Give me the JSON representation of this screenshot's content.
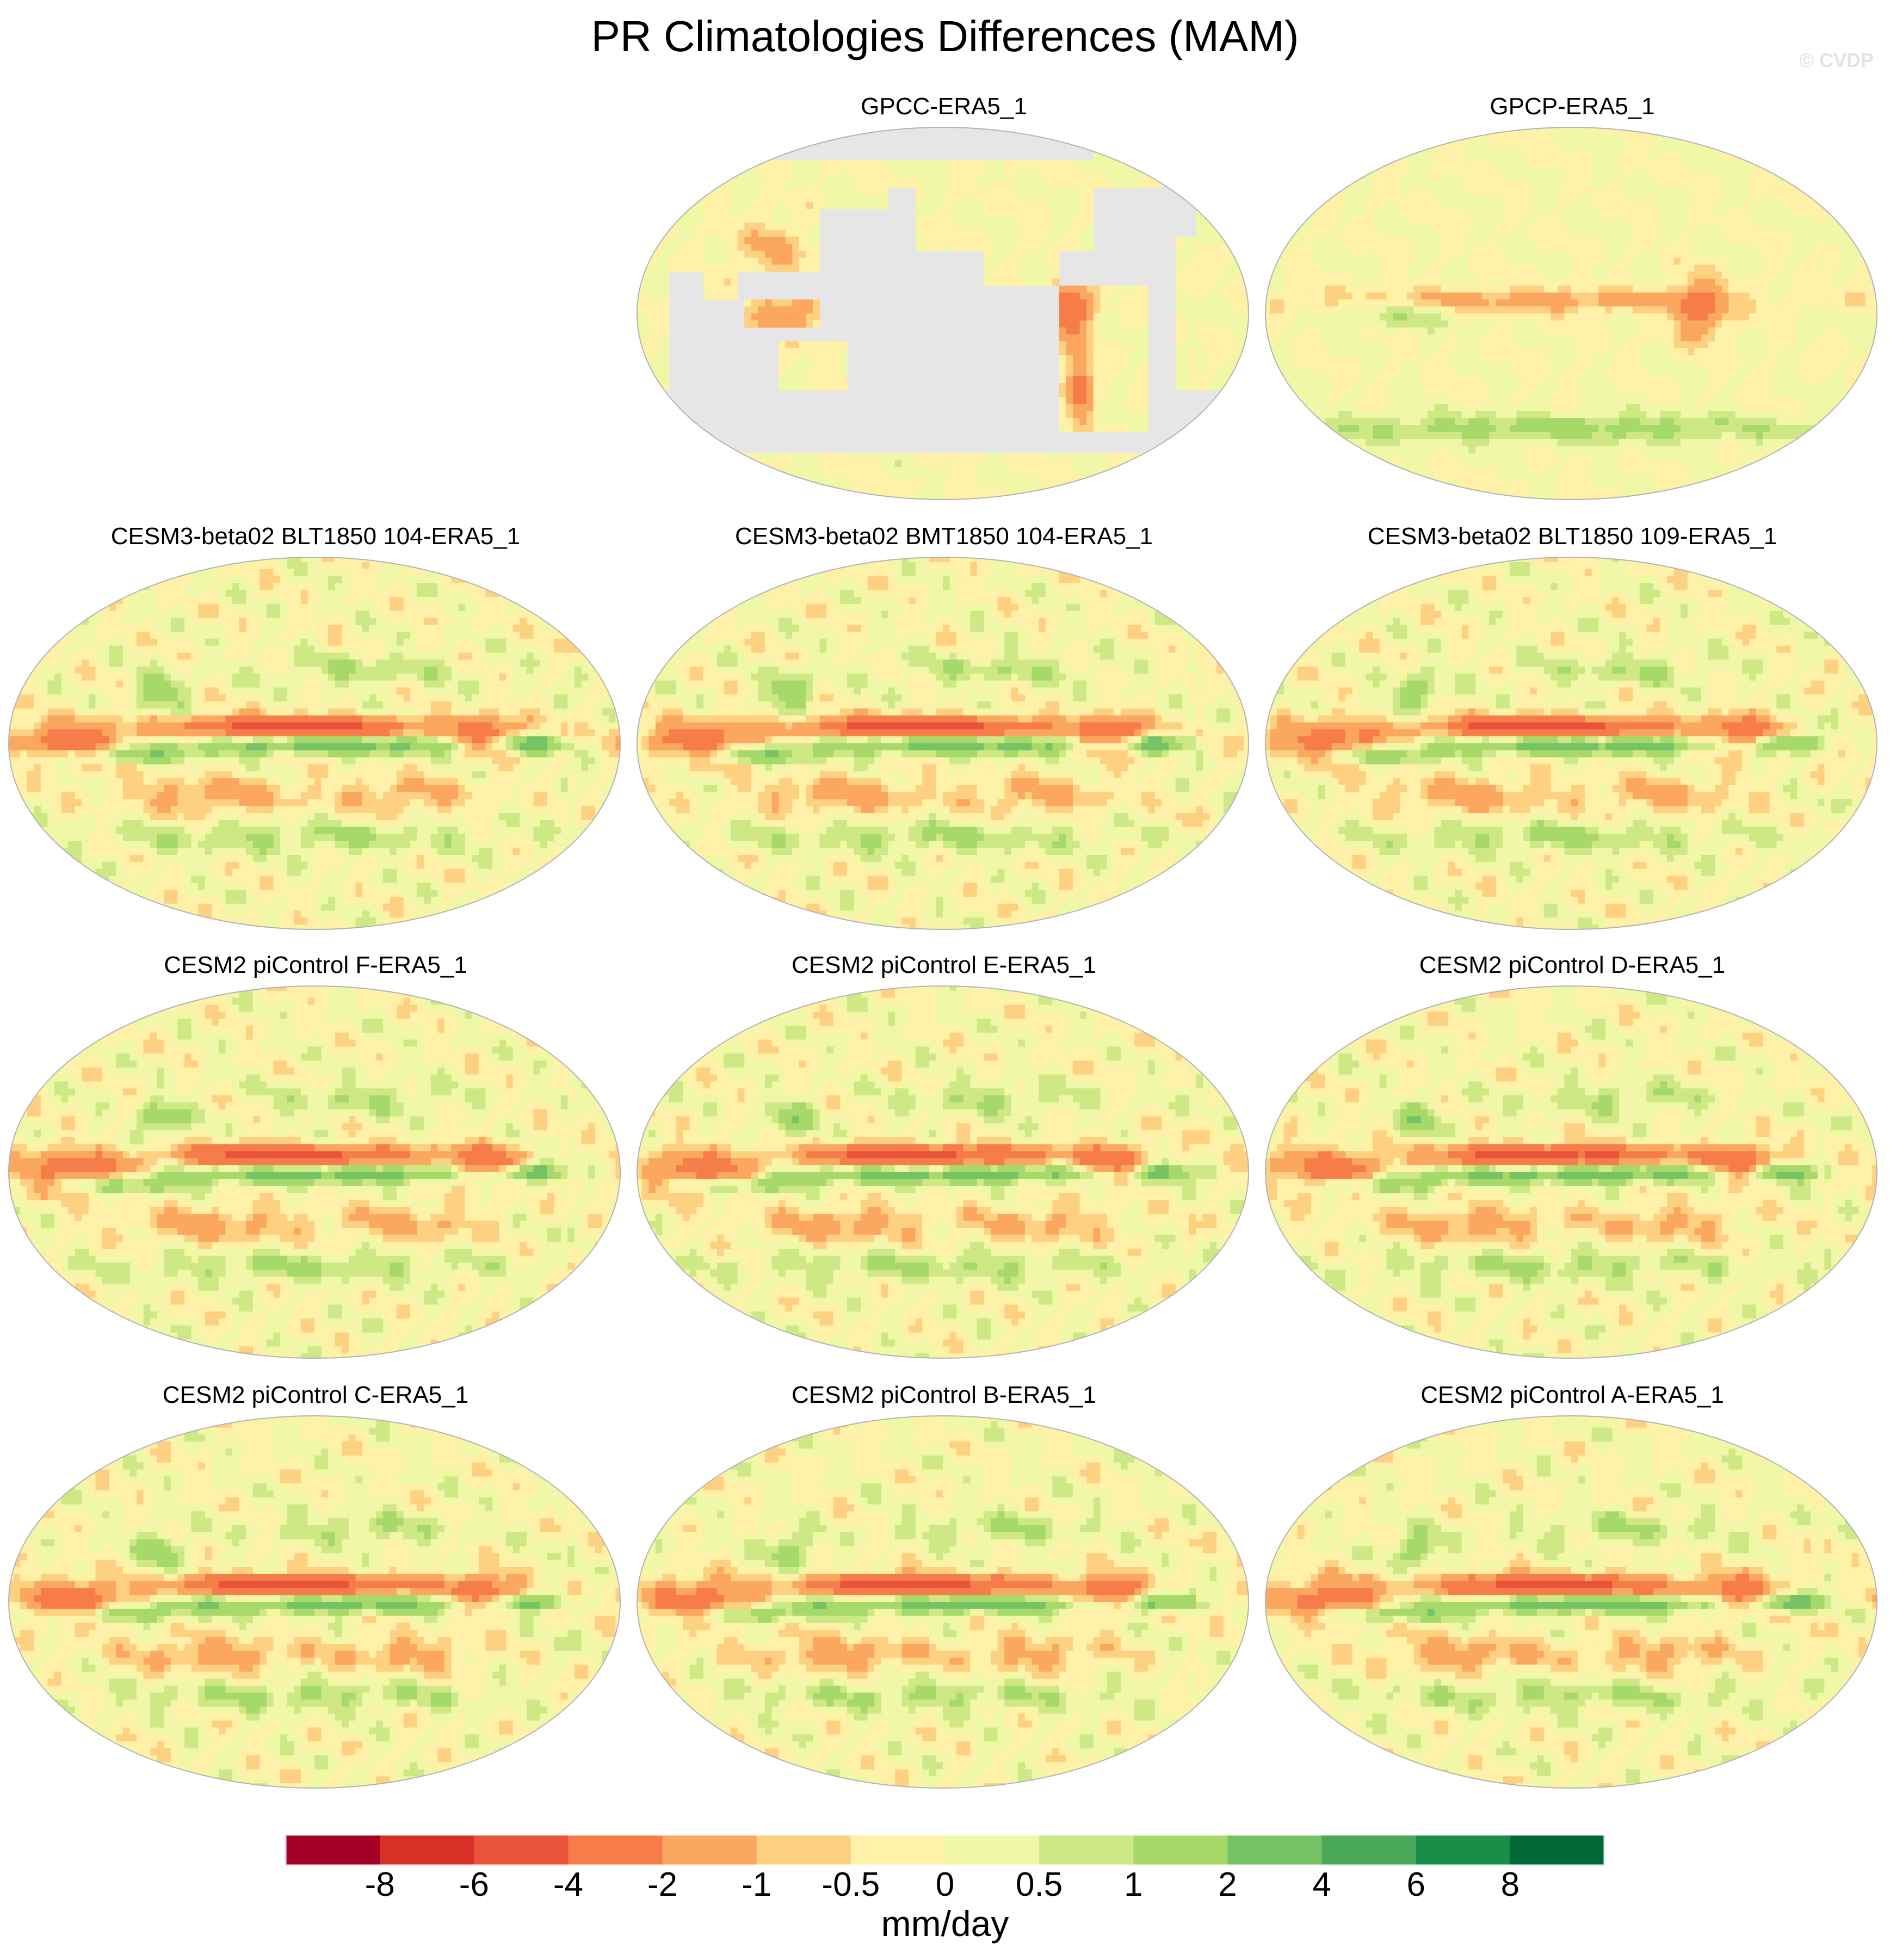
{
  "header": {
    "title": "PR Climatologies Differences (MAM)",
    "watermark": "© CVDP"
  },
  "panels": [
    {
      "title": "GPCC-ERA5_1",
      "land_only": true
    },
    {
      "title": "GPCP-ERA5_1",
      "land_only": false
    },
    {
      "title": "CESM3-beta02 BLT1850 104-ERA5_1",
      "land_only": false
    },
    {
      "title": "CESM3-beta02 BMT1850 104-ERA5_1",
      "land_only": false
    },
    {
      "title": "CESM3-beta02 BLT1850 109-ERA5_1",
      "land_only": false
    },
    {
      "title": "CESM2 piControl F-ERA5_1",
      "land_only": false
    },
    {
      "title": "CESM2 piControl E-ERA5_1",
      "land_only": false
    },
    {
      "title": "CESM2 piControl D-ERA5_1",
      "land_only": false
    },
    {
      "title": "CESM2 piControl C-ERA5_1",
      "land_only": false
    },
    {
      "title": "CESM2 piControl B-ERA5_1",
      "land_only": false
    },
    {
      "title": "CESM2 piControl A-ERA5_1",
      "land_only": false
    }
  ],
  "colorbar": {
    "units": "mm/day",
    "labels": [
      "-8",
      "-6",
      "-4",
      "-2",
      "-1",
      "-0.5",
      "0",
      "0.5",
      "1",
      "2",
      "4",
      "6",
      "8"
    ],
    "colors": [
      "#a50026",
      "#d73027",
      "#e9533a",
      "#f67c4a",
      "#fba75f",
      "#fdd082",
      "#fff1a8",
      "#f0f7a6",
      "#cde885",
      "#a6d86a",
      "#75c365",
      "#48a857",
      "#1a8d49",
      "#006837"
    ]
  },
  "colors": {
    "missing": "#e6e6e6",
    "coast": "#8a8a8a",
    "outline": "#b3b3b3"
  },
  "chart_data": {
    "type": "heatmap",
    "title": "PR Climatologies Differences (MAM)",
    "projection": "Robinson, centered on Pacific",
    "units": "mm/day",
    "levels": [
      -8,
      -6,
      -4,
      -2,
      -1,
      -0.5,
      0,
      0.5,
      1,
      2,
      4,
      6,
      8
    ],
    "panel_count": 11,
    "layout": "3 columns x 4 rows, top-left slot empty",
    "features": [
      {
        "panel": "GPCC-ERA5_1",
        "note": "land only; ocean missing (grey); negatives over northwest South America, Andes and maritime continent"
      },
      {
        "panel": "GPCP-ERA5_1",
        "note": "mostly -0.5 to 0.5; negative band along ITCZ; positive bands in southern midlatitudes"
      },
      {
        "panel": "CESM3-beta02 (3 runs)",
        "note": "strong negative band (-4 to -6) north of equator in central/east Pacific; positive band (2 to 6) on equator; double ITCZ pattern"
      },
      {
        "panel": "CESM2 piControl A-F",
        "note": "negative tongue in Indian Ocean and equatorial Pacific north band; positive along equator; negative band in southeast Pacific"
      }
    ]
  }
}
